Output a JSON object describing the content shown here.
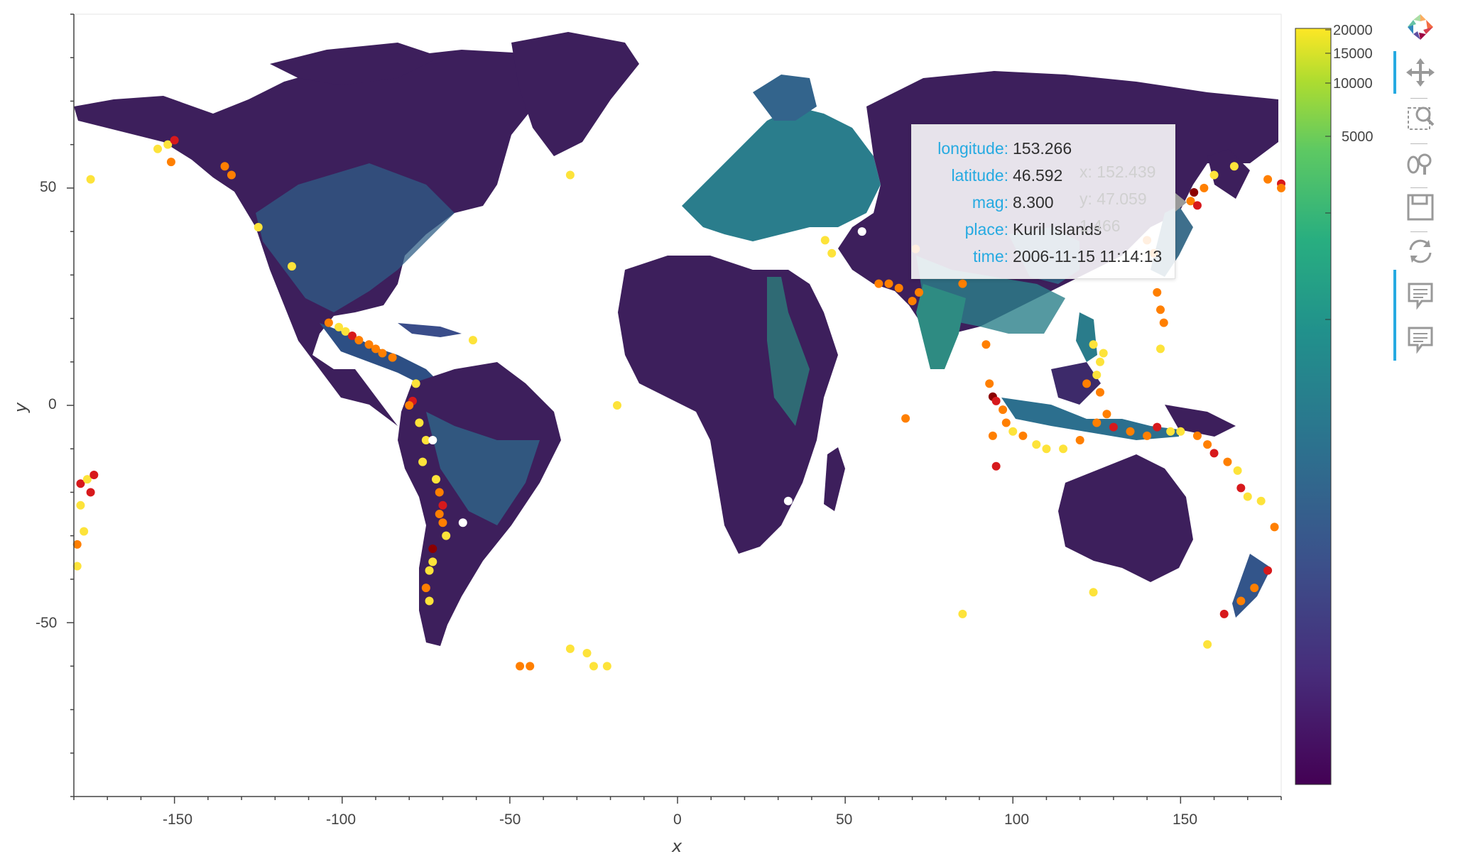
{
  "map": {
    "x_axis_title": "x",
    "y_axis_title": "y",
    "x_ticks": [
      "-150",
      "-100",
      "-50",
      "0",
      "50",
      "100",
      "150"
    ],
    "y_ticks": [
      "50",
      "0",
      "-50"
    ],
    "xlim": [
      -180,
      180
    ],
    "ylim": [
      -90,
      90
    ],
    "background_layer": "population density raster (viridis, log scale)",
    "point_layer": "earthquakes colored by magnitude",
    "tooltip": {
      "rows": [
        {
          "key": "longitude:",
          "value": "153.266"
        },
        {
          "key": "latitude:",
          "value": "46.592"
        },
        {
          "key": "mag:",
          "value": "8.300"
        },
        {
          "key": "place:",
          "value": "Kuril Islands"
        },
        {
          "key": "time:",
          "value": "2006-11-15 11:14:13"
        }
      ],
      "ghost_rows": [
        "x: 152.439",
        "y: 47.059",
        "1.466"
      ]
    }
  },
  "colorbar": {
    "ticks": [
      "20000",
      "15000",
      "10000",
      "5000"
    ],
    "scale": "log",
    "colormap": "viridis",
    "low_color": "#440154",
    "high_color": "#fde725"
  },
  "toolbar": {
    "tools": [
      "bokeh-logo-icon",
      "pan-icon",
      "box-zoom-icon",
      "wheel-zoom-icon",
      "save-icon",
      "reset-icon",
      "hover-icon",
      "hover-icon"
    ],
    "active_color": "#26aae1"
  },
  "colors": {
    "land_base": "#3d1f5c",
    "land_dense": "#2a8a7f",
    "quake_low": "#fde33a",
    "quake_mid": "#ff7f00",
    "quake_high": "#d7191c",
    "quake_max": "#8b0000"
  }
}
